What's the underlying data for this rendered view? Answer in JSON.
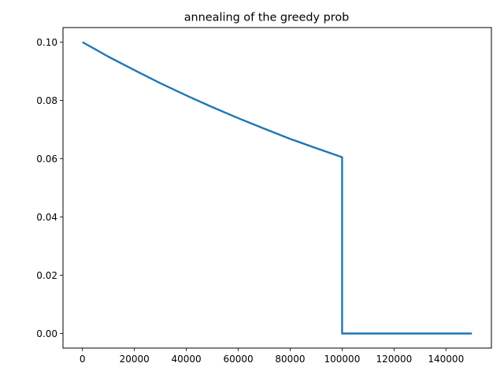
{
  "chart_data": {
    "type": "line",
    "title": "annealing of the greedy prob",
    "xlabel": "",
    "ylabel": "",
    "xlim": [
      -7500,
      157500
    ],
    "ylim": [
      -0.005,
      0.105
    ],
    "xticks": [
      0,
      20000,
      40000,
      60000,
      80000,
      100000,
      120000,
      140000
    ],
    "xtick_labels": [
      "0",
      "20000",
      "40000",
      "60000",
      "80000",
      "100000",
      "120000",
      "140000"
    ],
    "yticks": [
      0.0,
      0.02,
      0.04,
      0.06,
      0.08,
      0.1
    ],
    "ytick_labels": [
      "0.00",
      "0.02",
      "0.04",
      "0.06",
      "0.08",
      "0.10"
    ],
    "grid": false,
    "legend": "none",
    "line_color": "#1f77b4",
    "series": [
      {
        "x": [
          0,
          10000,
          20000,
          30000,
          40000,
          50000,
          60000,
          70000,
          80000,
          90000,
          100000,
          100000,
          150000
        ],
        "y": [
          0.1,
          0.095,
          0.0904,
          0.0859,
          0.0817,
          0.0777,
          0.0739,
          0.0703,
          0.0668,
          0.0636,
          0.0605,
          0.0,
          0.0
        ]
      }
    ]
  }
}
